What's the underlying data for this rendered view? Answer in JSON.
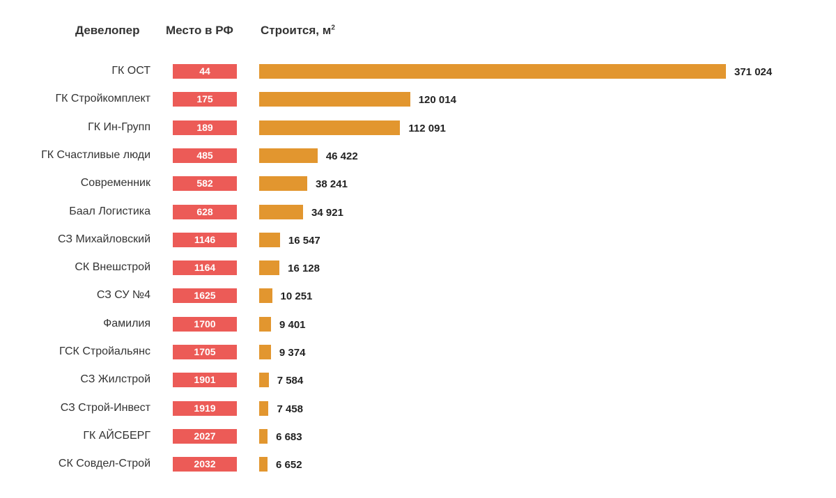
{
  "headers": {
    "developer": "Девелопер",
    "rank": "Место в РФ",
    "area": "Строится, м",
    "area_sup": "2"
  },
  "colors": {
    "rank_box": "#ec5b57",
    "bar": "#e2962f"
  },
  "chart_data": {
    "type": "bar",
    "orientation": "horizontal",
    "categories": [
      "ГК ОСТ",
      "ГК Стройкомплект",
      "ГК Ин-Групп",
      "ГК Счастливые люди",
      "Современник",
      "Баал Логистика",
      "СЗ Михайловский",
      "СК Внешстрой",
      "СЗ СУ №4",
      "Фамилия",
      "ГСК Стройальянс",
      "СЗ Жилстрой",
      "СЗ Строй-Инвест",
      "ГК АЙСБЕРГ",
      "СК Совдел-Строй"
    ],
    "ranks": [
      "44",
      "175",
      "189",
      "485",
      "582",
      "628",
      "1146",
      "1164",
      "1625",
      "1700",
      "1705",
      "1901",
      "1919",
      "2027",
      "2032"
    ],
    "values": [
      371024,
      120014,
      112091,
      46422,
      38241,
      34921,
      16547,
      16128,
      10251,
      9401,
      9374,
      7584,
      7458,
      6683,
      6652
    ],
    "value_labels": [
      "371 024",
      "120 014",
      "112 091",
      "46 422",
      "38 241",
      "34 921",
      "16 547",
      "16 128",
      "10 251",
      "9 401",
      "9 374",
      "7 584",
      "7 458",
      "6 683",
      "6 652"
    ]
  }
}
